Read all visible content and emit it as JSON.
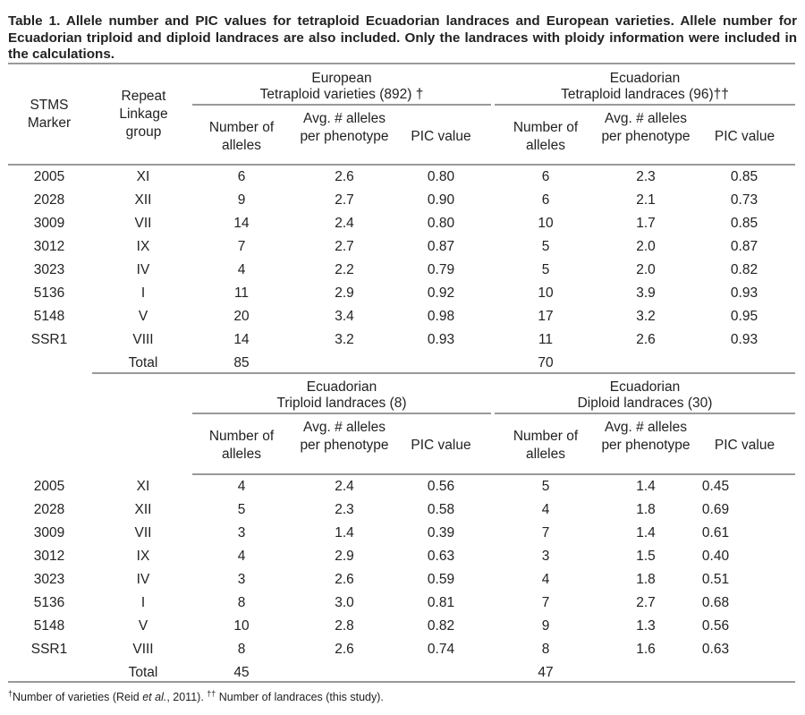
{
  "caption": "Table 1. Allele number and PIC values for tetraploid Ecuadorian landraces and European varieties. Allele number for Ecuadorian triploid and diploid landraces are also included. Only the landraces with ploidy information were included in the calculations.",
  "col_headers": {
    "marker": "STMS Marker",
    "repeat": "Repeat Linkage group",
    "num_alleles": "Number of alleles",
    "avg_alleles": "Avg. # alleles per phenotype",
    "pic": "PIC  value",
    "pic_alt": "PIC value"
  },
  "group_headers": {
    "european": {
      "line1": "European",
      "line2": "Tetraploid varieties (892) †"
    },
    "ecu_tetra": {
      "line1": "Ecuadorian",
      "line2": "Tetraploid landraces (96)††"
    },
    "ecu_tri": {
      "line1": "Ecuadorian",
      "line2": "Triploid landraces (8)"
    },
    "ecu_di": {
      "line1": "Ecuadorian",
      "line2": "Diploid landraces (30)"
    }
  },
  "section1": {
    "rows": [
      [
        "2005",
        "XI",
        "6",
        "2.6",
        "0.80",
        "6",
        "2.3",
        "0.85"
      ],
      [
        "2028",
        "XII",
        "9",
        "2.7",
        "0.90",
        "6",
        "2.1",
        "0.73"
      ],
      [
        "3009",
        "VII",
        "14",
        "2.4",
        "0.80",
        "10",
        "1.7",
        "0.85"
      ],
      [
        "3012",
        "IX",
        "7",
        "2.7",
        "0.87",
        "5",
        "2.0",
        "0.87"
      ],
      [
        "3023",
        "IV",
        "4",
        "2.2",
        "0.79",
        "5",
        "2.0",
        "0.82"
      ],
      [
        "5136",
        "I",
        "11",
        "2.9",
        "0.92",
        "10",
        "3.9",
        "0.93"
      ],
      [
        "5148",
        "V",
        "20",
        "3.4",
        "0.98",
        "17",
        "3.2",
        "0.95"
      ],
      [
        "SSR1",
        "VIII",
        "14",
        "3.2",
        "0.93",
        "11",
        "2.6",
        "0.93"
      ]
    ],
    "total_label": "Total",
    "total_a": "85",
    "total_b": "70"
  },
  "section2": {
    "rows": [
      [
        "2005",
        "XI",
        "4",
        "2.4",
        "0.56",
        "5",
        "1.4",
        "0.45"
      ],
      [
        "2028",
        "XII",
        "5",
        "2.3",
        "0.58",
        "4",
        "1.8",
        "0.69"
      ],
      [
        "3009",
        "VII",
        "3",
        "1.4",
        "0.39",
        "7",
        "1.4",
        "0.61"
      ],
      [
        "3012",
        "IX",
        "4",
        "2.9",
        "0.63",
        "3",
        "1.5",
        "0.40"
      ],
      [
        "3023",
        "IV",
        "3",
        "2.6",
        "0.59",
        "4",
        "1.8",
        "0.51"
      ],
      [
        "5136",
        "I",
        "8",
        "3.0",
        "0.81",
        "7",
        "2.7",
        "0.68"
      ],
      [
        "5148",
        "V",
        "10",
        "2.8",
        "0.82",
        "9",
        "1.3",
        "0.56"
      ],
      [
        "SSR1",
        "VIII",
        "8",
        "2.6",
        "0.74",
        "8",
        "1.6",
        "0.63"
      ]
    ],
    "total_label": "Total",
    "total_a": "45",
    "total_b": "47"
  },
  "footnote": {
    "sym1": "†",
    "text1": "Number of varieties (Reid ",
    "etal": "et al.",
    "text2": ", 2011). ",
    "sym2": "††",
    "text3": " Number of landraces (this study)."
  }
}
